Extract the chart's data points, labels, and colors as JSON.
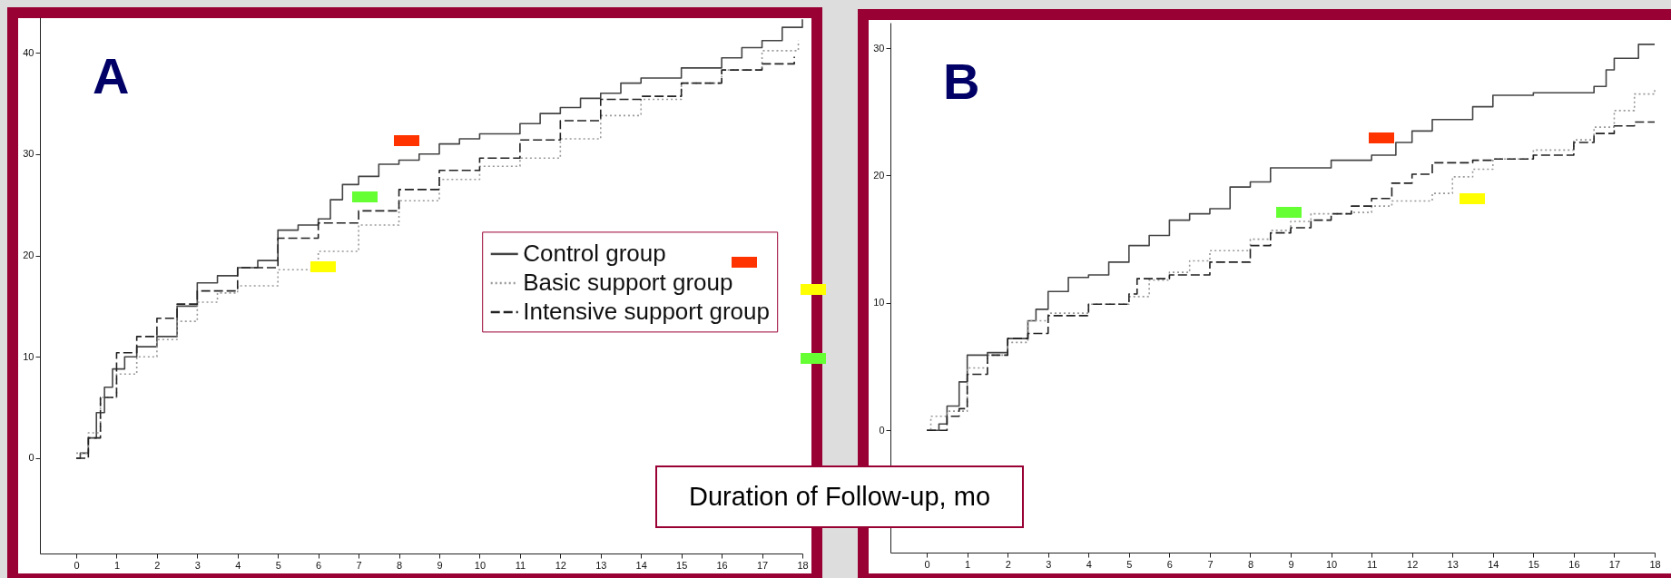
{
  "chart_data": [
    {
      "type": "step",
      "title": "A",
      "xlabel": "Duration of Follow-up, mo",
      "xlim": [
        -0.9,
        18
      ],
      "xticks": [
        0,
        1,
        2,
        3,
        4,
        5,
        6,
        7,
        8,
        9,
        10,
        11,
        12,
        13,
        14,
        15,
        16,
        17,
        18
      ],
      "ylim": [
        -9.4,
        43.5
      ],
      "yticks": [
        0,
        10,
        20,
        30,
        40
      ],
      "legend": "right",
      "series": [
        {
          "name": "Control group",
          "color": "#444444",
          "line_style": "solid",
          "x": [
            0,
            0.1,
            0.3,
            0.5,
            0.7,
            0.9,
            1.2,
            1.5,
            2,
            2.5,
            3,
            3.5,
            4,
            4.5,
            5,
            5.5,
            6,
            6.3,
            6.6,
            7,
            7.5,
            8,
            8.5,
            9,
            9.5,
            10,
            11,
            11.5,
            12,
            12.5,
            13,
            13.5,
            14,
            15,
            16,
            16.5,
            17,
            17.5,
            18
          ],
          "values": [
            0,
            0.5,
            2,
            4.5,
            7,
            8.8,
            10,
            11,
            12,
            15,
            17.3,
            18,
            18.8,
            19.5,
            22.5,
            23,
            23.6,
            25.5,
            27,
            27.8,
            29,
            29.4,
            30,
            31,
            31.5,
            32,
            33,
            34,
            34.6,
            35.5,
            36,
            37,
            37.5,
            38.5,
            39.5,
            40.5,
            41.2,
            42.5,
            43.3
          ]
        },
        {
          "name": "Basic support group",
          "color": "#999999",
          "line_style": "dotted",
          "x": [
            0,
            0.3,
            0.6,
            1,
            1.5,
            2,
            2.5,
            3,
            3.5,
            4,
            5,
            6,
            7,
            8,
            9,
            10,
            11,
            12,
            13,
            14,
            15,
            16,
            17,
            17.9
          ],
          "values": [
            0.5,
            2.5,
            6,
            8.3,
            10,
            11.7,
            13.5,
            15.4,
            16.3,
            17,
            18.6,
            20.4,
            23,
            25.4,
            27.5,
            28.8,
            29.6,
            31.5,
            33.8,
            35.4,
            37,
            38.3,
            40.2,
            41.2
          ]
        },
        {
          "name": "Intensive support group",
          "color": "#222222",
          "line_style": "dashed",
          "x": [
            0,
            0.3,
            0.6,
            1,
            1.5,
            2,
            2.5,
            3,
            4,
            5,
            6,
            7,
            8,
            9,
            10,
            11,
            12,
            13,
            14,
            15,
            16,
            17,
            17.8
          ],
          "values": [
            0,
            2,
            6,
            10.4,
            12,
            13.8,
            15.2,
            16.5,
            18.8,
            21.7,
            23.2,
            24.4,
            26.5,
            28.4,
            29.6,
            31.4,
            33.3,
            35.4,
            35.7,
            37,
            38.3,
            38.9,
            39.6
          ]
        }
      ]
    },
    {
      "type": "step",
      "title": "B",
      "xlim": [
        -0.9,
        18
      ],
      "xticks": [
        0,
        1,
        2,
        3,
        4,
        5,
        6,
        7,
        8,
        9,
        10,
        11,
        12,
        13,
        14,
        15,
        16,
        17,
        18
      ],
      "ylim": [
        -9.6,
        32
      ],
      "yticks": [
        0,
        10,
        20,
        30
      ],
      "series": [
        {
          "color": "#444444",
          "line_style": "solid",
          "x": [
            0,
            0.3,
            0.5,
            0.8,
            1,
            1.5,
            2,
            2.5,
            2.7,
            3,
            3.5,
            4,
            4.5,
            5,
            5.5,
            6,
            6.5,
            7,
            7.5,
            8,
            8.5,
            10,
            11,
            11.6,
            12,
            12.5,
            13.5,
            14,
            15,
            16.5,
            16.8,
            17,
            17.6,
            18
          ],
          "values": [
            0,
            0.5,
            1.9,
            3.8,
            5.9,
            6.1,
            7.2,
            8.6,
            9.5,
            10.9,
            12,
            12.2,
            13.2,
            14.5,
            15.3,
            16.5,
            17,
            17.4,
            19.1,
            19.5,
            20.6,
            21.2,
            21.6,
            22.6,
            23.5,
            24.4,
            25.4,
            26.3,
            26.5,
            27,
            28.3,
            29.2,
            30.3,
            30.3
          ]
        },
        {
          "color": "#999999",
          "line_style": "dotted",
          "x": [
            0,
            0.1,
            0.5,
            1,
            1.5,
            2,
            2.5,
            3,
            4,
            5,
            5.5,
            6,
            6.5,
            7,
            8,
            8.5,
            9,
            9.5,
            10.5,
            11,
            11.5,
            12.5,
            13,
            13.5,
            14,
            15,
            16,
            16.5,
            17,
            17.5,
            18
          ],
          "values": [
            0,
            1.1,
            1.5,
            4.9,
            5.9,
            6.9,
            8.6,
            9.2,
            9.9,
            10.5,
            11.8,
            12.4,
            13.3,
            14.1,
            15,
            15.7,
            16.4,
            17,
            17.1,
            17.6,
            18,
            18.6,
            19.9,
            20.5,
            21.3,
            22,
            22.8,
            23.8,
            25.1,
            26.4,
            26.8
          ]
        },
        {
          "color": "#222222",
          "line_style": "dashed",
          "x": [
            0,
            0.5,
            0.8,
            1,
            1.5,
            2,
            2.5,
            3,
            4,
            5,
            5.2,
            6,
            7,
            8,
            8.5,
            9,
            9.5,
            10,
            10.5,
            11,
            11.5,
            12,
            12.5,
            13.5,
            14,
            15,
            16,
            16.5,
            17,
            17.5,
            18
          ],
          "values": [
            0,
            1.1,
            1.7,
            4.4,
            5.9,
            7.2,
            7.6,
            9,
            9.9,
            10.7,
            11.9,
            12.2,
            13.2,
            14.5,
            15.5,
            15.9,
            16.5,
            17,
            17.6,
            18.2,
            19.4,
            20.1,
            21,
            21.2,
            21.3,
            21.6,
            22.6,
            23.3,
            23.9,
            24.2,
            24.2
          ]
        }
      ]
    }
  ]
}
